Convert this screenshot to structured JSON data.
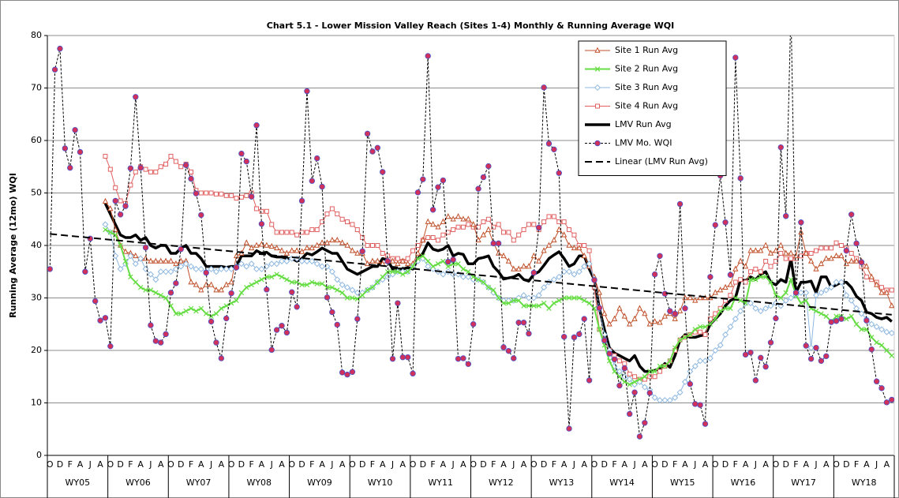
{
  "chart_data": {
    "type": "line",
    "title": "Chart 5.1 -  Lower Mission Valley Reach (Sites 1-4) Monthly & Running Average WQI",
    "y_label": "Running Average (12mo) WQI",
    "ylim": [
      0,
      80
    ],
    "yticks": [
      0,
      10,
      20,
      30,
      40,
      50,
      60,
      70,
      80
    ],
    "grid": true,
    "legend": "top-right",
    "categories": [
      "O",
      null,
      "D",
      null,
      "F",
      null,
      "A",
      null,
      "J",
      null,
      "A",
      null,
      "O",
      null,
      "D",
      null,
      "F",
      null,
      "A",
      null,
      "J",
      null,
      "A",
      null,
      "O",
      null,
      "D",
      null,
      "F",
      null,
      "A",
      null,
      "J",
      null,
      "A",
      null,
      "O",
      null,
      "D",
      null,
      "F",
      null,
      "A",
      null,
      "J",
      null,
      "A",
      null,
      "O",
      null,
      "D",
      null,
      "F",
      null,
      "A",
      null,
      "J",
      null,
      "A",
      null,
      "O",
      null,
      "D",
      null,
      "F",
      null,
      "A",
      null,
      "J",
      null,
      "A",
      null,
      "O",
      null,
      "D",
      null,
      "F",
      null,
      "A",
      null,
      "J",
      null,
      "A",
      null,
      "O",
      null,
      "D",
      null,
      "F",
      null,
      "A",
      null,
      "J",
      null,
      "A",
      null,
      "O",
      null,
      "D",
      null,
      "F",
      null,
      "A",
      null,
      "J",
      null,
      "A",
      null,
      "O",
      null,
      "D",
      null,
      "F",
      null,
      "A",
      null,
      "J",
      null,
      "A",
      null,
      "O",
      null,
      "D",
      null,
      "F",
      null,
      "A",
      null,
      "J",
      null,
      "A",
      null,
      "O",
      null,
      "D",
      null,
      "F",
      null,
      "A",
      null,
      "J",
      null,
      "A",
      null,
      "O",
      null,
      "D",
      null,
      "F",
      null,
      "A",
      null,
      "J",
      null,
      "A",
      null,
      "O",
      null,
      "D",
      null,
      "F",
      null,
      "A",
      null,
      "J",
      null,
      "A",
      null
    ],
    "groups": [
      "WY05",
      "WY06",
      "WY07",
      "WY08",
      "WY09",
      "WY10",
      "WY11",
      "WY12",
      "WY13",
      "WY14",
      "WY15",
      "WY16",
      "WY17",
      "WY18"
    ],
    "series": [
      {
        "name": "Site 1 Run Avg",
        "color": "#c0502a",
        "marker": "triangle",
        "width": 1,
        "values": [
          null,
          null,
          null,
          null,
          null,
          null,
          null,
          null,
          null,
          null,
          null,
          48.4,
          47,
          43,
          40,
          38.8,
          38.5,
          38,
          37.5,
          37.5,
          37,
          37,
          37,
          37,
          37,
          36.5,
          37,
          37,
          33,
          32.5,
          31.5,
          32.5,
          32.5,
          31.5,
          31.5,
          32.5,
          33,
          38,
          38.5,
          40.5,
          39.5,
          40,
          40.2,
          40,
          39.8,
          39.5,
          39,
          38.5,
          39,
          39,
          38.8,
          39.5,
          39.5,
          40,
          40.5,
          40.5,
          41,
          41,
          40.5,
          40,
          39,
          38.5,
          38.5,
          36.5,
          37,
          37,
          36.5,
          37,
          37,
          36.5,
          37,
          36.5,
          36.5,
          38.5,
          41,
          44.5,
          44,
          43.5,
          44.5,
          45.5,
          45,
          45.5,
          45,
          45,
          44,
          41,
          42,
          43,
          40.5,
          38.5,
          38,
          37,
          35.5,
          35.5,
          36,
          36,
          38,
          37,
          39,
          40,
          41,
          43,
          42,
          40,
          39.5,
          39.5,
          38,
          36,
          34,
          31,
          27,
          25,
          26,
          28,
          26.5,
          25,
          26,
          28,
          27,
          25,
          25.5,
          25.3,
          26.5,
          27,
          26,
          27.5,
          30,
          30,
          29.5,
          30,
          30,
          30,
          31,
          31.5,
          32,
          32.5,
          35.5,
          37,
          36,
          39,
          39,
          39,
          40,
          38.5,
          39,
          40,
          38.5,
          38.5,
          38,
          42.5,
          38.5,
          37,
          35.5,
          36.5,
          37.5,
          37.5,
          38,
          38,
          36.5,
          37,
          37,
          37,
          36,
          34,
          32.5,
          31,
          31,
          28.5
        ]
      },
      {
        "name": "Site 2 Run Avg",
        "color": "#66dd44",
        "marker": "x",
        "width": 2,
        "values": [
          null,
          null,
          null,
          null,
          null,
          null,
          null,
          null,
          null,
          null,
          null,
          43,
          42.5,
          42,
          40,
          37,
          34,
          33,
          32,
          31.5,
          31.5,
          31,
          30.5,
          30,
          28.5,
          27,
          27,
          27.5,
          28,
          27.5,
          28,
          27,
          26.5,
          27,
          28,
          28.5,
          29,
          29.5,
          31,
          32,
          32.5,
          33,
          33.5,
          34,
          34,
          34.5,
          34,
          33.5,
          33,
          33,
          32.5,
          32.5,
          33,
          32.7,
          32.7,
          32,
          32,
          31.5,
          31,
          30,
          30,
          29.8,
          30.5,
          31.5,
          32,
          33,
          34,
          35,
          35,
          35,
          34.5,
          35,
          36,
          37.5,
          38,
          37,
          36,
          36.5,
          37,
          36,
          36.5,
          36.5,
          35.5,
          35,
          34,
          33.5,
          33,
          32,
          31.5,
          30,
          29,
          29,
          29.5,
          29.5,
          28.5,
          28.5,
          28.5,
          28.5,
          29,
          28,
          29,
          29.5,
          30,
          30,
          30,
          30,
          29.5,
          29,
          28,
          24,
          21,
          18,
          16,
          15,
          14,
          13.5,
          14,
          14.5,
          15,
          16,
          16,
          17,
          17,
          18,
          20.5,
          22,
          22.5,
          23,
          24,
          24.5,
          24.5,
          25,
          26,
          27.5,
          28,
          28,
          30,
          29.5,
          29,
          33.5,
          33.5,
          34,
          34,
          33,
          30.5,
          30,
          31,
          33.5,
          30.5,
          29,
          29.5,
          28,
          27.5,
          27,
          26.5,
          25.5,
          26.5,
          26.5,
          26,
          26.5,
          25,
          24,
          24,
          22.5,
          21.5,
          21,
          20,
          19
        ]
      },
      {
        "name": "Site 3 Run Avg",
        "color": "#8fb8e0",
        "marker": "diamond",
        "width": 1,
        "values": [
          null,
          null,
          null,
          null,
          null,
          null,
          null,
          null,
          null,
          null,
          null,
          44,
          42.5,
          38,
          35.5,
          36.5,
          38,
          36.5,
          37.5,
          35.5,
          34.5,
          33.5,
          35,
          35,
          35,
          35.5,
          36,
          36.5,
          36,
          35.5,
          35.5,
          35,
          35.5,
          35,
          35.5,
          35.5,
          35.5,
          36,
          36.5,
          36,
          36.5,
          35.5,
          35.5,
          36,
          36.5,
          36.5,
          37,
          37,
          37.5,
          37.5,
          37,
          37,
          37,
          36.5,
          36,
          36,
          35,
          33.5,
          32.5,
          32,
          31.5,
          31,
          31,
          31.5,
          32,
          33,
          33.5,
          34,
          34.5,
          35,
          35,
          35,
          36,
          37,
          37.5,
          36,
          35.5,
          35,
          34.5,
          35,
          34.5,
          34.5,
          34,
          34,
          33.5,
          33.5,
          33,
          32,
          31,
          30,
          29.5,
          29.5,
          29.5,
          30,
          30.5,
          30,
          30,
          30.5,
          32,
          33,
          33.5,
          34,
          35,
          35,
          34.5,
          35,
          36,
          36.5,
          33.5,
          28,
          23,
          20,
          17,
          16,
          15,
          14.5,
          13.5,
          14,
          13,
          12.5,
          11,
          10.5,
          10.5,
          10.5,
          11,
          12,
          14,
          16,
          17,
          18,
          18,
          18.5,
          20,
          21,
          23,
          24.5,
          26,
          27.5,
          29,
          29,
          28,
          27.5,
          28,
          28.5,
          29,
          28.5,
          29.5,
          30,
          30.5,
          31,
          31,
          20.5,
          30.5,
          31,
          31.5,
          32,
          33,
          33,
          30.5,
          29.5,
          28,
          27,
          26,
          25,
          24.5,
          24,
          23.5,
          23.3
        ]
      },
      {
        "name": "Site 4 Run Avg",
        "color": "#e06060",
        "marker": "square",
        "width": 1,
        "values": [
          null,
          null,
          null,
          null,
          null,
          null,
          null,
          null,
          null,
          null,
          null,
          57,
          54.5,
          51,
          48.5,
          48,
          51.5,
          54,
          55,
          54.5,
          54,
          54,
          55,
          55.5,
          57,
          56,
          55,
          55.5,
          54,
          50.5,
          50,
          50,
          50,
          49.8,
          49.8,
          49.5,
          49.5,
          49,
          49.2,
          49.5,
          50,
          47,
          46.5,
          46.5,
          44,
          42.5,
          42.5,
          42.5,
          42.5,
          42,
          42.5,
          42.5,
          43,
          43,
          44.5,
          46,
          47,
          46,
          45,
          44.5,
          44,
          43,
          41.5,
          40,
          40,
          40,
          38.5,
          38,
          37.5,
          37.5,
          37,
          37.5,
          39,
          40,
          41,
          41.5,
          41.5,
          41,
          42,
          42.5,
          43,
          43.5,
          43.5,
          44,
          43.5,
          43.5,
          44.5,
          45,
          43.5,
          44,
          42.5,
          42.5,
          41,
          42,
          43,
          44,
          44,
          43,
          44.5,
          45.5,
          45.5,
          44.5,
          44.5,
          43,
          42,
          40,
          40,
          39,
          32,
          24,
          22,
          20,
          19,
          18,
          17.5,
          15.5,
          15,
          14.5,
          14.5,
          15,
          15,
          16,
          17,
          18,
          20,
          22,
          22.5,
          23,
          23.5,
          23.5,
          23,
          26,
          27,
          28,
          29.5,
          30.5,
          33,
          33.5,
          33,
          35,
          35.5,
          35,
          37,
          36,
          37,
          38.5,
          37.5,
          37.5,
          37.5,
          38,
          38.5,
          38.5,
          39,
          39.5,
          39.5,
          39.5,
          40.5,
          40,
          39.5,
          38.5,
          37.5,
          36,
          34,
          33.5,
          33,
          32,
          31.5,
          31.5
        ]
      },
      {
        "name": "LMV Run Avg",
        "color": "#000000",
        "marker": "none",
        "width": 3.5,
        "values": [
          null,
          null,
          null,
          null,
          null,
          null,
          null,
          null,
          null,
          null,
          null,
          48,
          46,
          44,
          42,
          41.5,
          41.5,
          42,
          41,
          41.5,
          40,
          39.5,
          40,
          40,
          38.5,
          38.5,
          39.5,
          40,
          38.5,
          38.5,
          37.5,
          36,
          36,
          36,
          36,
          35.8,
          36,
          36,
          38,
          38,
          38,
          39,
          38.5,
          38.7,
          38,
          37.8,
          37.8,
          37.5,
          37.5,
          37,
          37.5,
          38.5,
          38.2,
          38.8,
          39.5,
          39,
          38.5,
          38.5,
          37,
          35.5,
          35,
          34.5,
          35,
          35.5,
          36,
          36,
          37.5,
          37.2,
          35.5,
          35.5,
          35.5,
          35.8,
          35.5,
          37.5,
          38.5,
          40.5,
          39.3,
          39,
          39.3,
          40,
          38,
          38.5,
          38.3,
          36.5,
          36.5,
          37.5,
          37.7,
          38,
          36,
          35,
          33.6,
          33.8,
          34,
          34.5,
          33.5,
          33.2,
          34.5,
          35,
          36.2,
          37.5,
          38.2,
          38.8,
          37.5,
          36,
          36.5,
          38,
          38,
          35.5,
          33.5,
          28,
          24,
          20.5,
          19.5,
          19,
          18.5,
          18,
          19,
          17,
          16,
          16,
          16.2,
          16.5,
          17.5,
          16.8,
          19,
          22,
          23,
          22.5,
          22.5,
          22.8,
          23,
          25,
          26,
          27,
          28.5,
          29.5,
          30,
          33.5,
          33.3,
          34,
          33.5,
          34.5,
          35,
          33,
          32.5,
          33.5,
          33,
          37.5,
          31,
          33,
          33,
          33.2,
          31,
          34,
          34,
          32,
          32.5,
          33,
          33,
          32,
          30.3,
          29.5,
          27.3,
          27,
          26.3,
          26,
          26.3,
          25.5
        ]
      },
      {
        "name": "LMV Mo. WQI",
        "color": "#000000",
        "marker": "circle",
        "width": 1,
        "dash": "3,2",
        "values": [
          35.5,
          73.5,
          77.5,
          58.5,
          54.8,
          62,
          57.8,
          35,
          41.3,
          29.4,
          25.7,
          26.2,
          20.8,
          48.5,
          45.9,
          47.5,
          54.7,
          68.3,
          54.8,
          39.6,
          24.8,
          21.8,
          21.5,
          23.1,
          31,
          32.8,
          39.3,
          55.3,
          52.7,
          49.9,
          45.8,
          34.8,
          25.5,
          21.5,
          18.5,
          26.1,
          30.9,
          35.8,
          57.5,
          56,
          49.3,
          62.9,
          44.1,
          31.6,
          20.1,
          23.9,
          24.7,
          23.4,
          31.1,
          28.3,
          48.5,
          69.4,
          52.3,
          56.6,
          51.2,
          30.1,
          27.3,
          24.9,
          15.8,
          15.4,
          15.9,
          26,
          38.9,
          61.3,
          57.9,
          58.6,
          54,
          37,
          18.4,
          29,
          18.7,
          18.7,
          15.6,
          50.1,
          52.6,
          76.1,
          46.8,
          51.1,
          52.4,
          36.9,
          37.3,
          18.4,
          18.5,
          17.4,
          25,
          50.8,
          53,
          55.1,
          40.4,
          40.4,
          20.6,
          19.9,
          18.5,
          25.3,
          25.3,
          23.2,
          34.8,
          43.4,
          70.1,
          59.4,
          58.3,
          53.8,
          22.6,
          5.1,
          22.5,
          23.1,
          26,
          14.3,
          33.4,
          28.1,
          21.9,
          19.4,
          18.3,
          13.3,
          16.6,
          7.9,
          12,
          3.6,
          6.2,
          11.9,
          34.5,
          38,
          30.8,
          27.5,
          27,
          47.9,
          28,
          13.6,
          9.8,
          9.6,
          6,
          34,
          43.9,
          53.3,
          44.4,
          34.4,
          75.8,
          52.8,
          19.2,
          19.6,
          14.3,
          18.6,
          16.9,
          21.5,
          26.1,
          58.7,
          45.6,
          85,
          31,
          44.4,
          20.9,
          18.4,
          20.5,
          18,
          18.9,
          25.4,
          25.6,
          26,
          39,
          45.9,
          40.4,
          36.8,
          25.7,
          20.2,
          14.1,
          12.8,
          10.1,
          10.6
        ]
      },
      {
        "name": "Linear (LMV Run Avg)",
        "color": "#000000",
        "marker": "none",
        "width": 2,
        "dash": "9,5",
        "x": [
          0,
          167
        ],
        "values": [
          42.2,
          26.8
        ]
      }
    ]
  }
}
